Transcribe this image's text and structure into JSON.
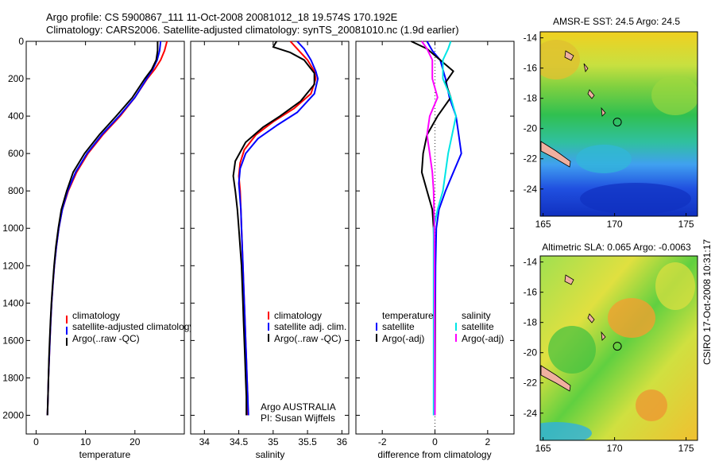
{
  "header": {
    "title_line1": "Argo profile: CS 5900867_111 11-Oct-2008 20081012_18 19.574S 170.192E",
    "title_line2": "Climatology: CARS2006. Satellite-adjusted climatology: synTS_20081010.nc (1.9d earlier)"
  },
  "side_stamp": "CSIRO 17-Oct-2008 10:31:17",
  "credits": {
    "line1": "Argo AUSTRALIA",
    "line2": "PI: Susan Wijffels"
  },
  "colors": {
    "climatology": "#ff0000",
    "satellite": "#0000ff",
    "argo": "#000000",
    "sal_satellite": "#00e5e5",
    "sal_argo": "#ff00ff"
  },
  "chart_data": [
    {
      "type": "line",
      "name": "temperature-profile",
      "xlabel": "temperature",
      "xlim": [
        -2,
        30
      ],
      "ylim": [
        2100,
        0
      ],
      "xticks": [
        0,
        10,
        20
      ],
      "yticks": [
        0,
        200,
        400,
        600,
        800,
        1000,
        1200,
        1400,
        1600,
        1800,
        2000
      ],
      "legend": [
        "climatology",
        "satellite-adjusted climatology",
        "Argo(..raw -QC)"
      ],
      "series": [
        {
          "name": "climatology",
          "color": "#ff0000",
          "points": [
            [
              26.5,
              0
            ],
            [
              26,
              50
            ],
            [
              25.2,
              100
            ],
            [
              24,
              150
            ],
            [
              22.5,
              200
            ],
            [
              20,
              300
            ],
            [
              17,
              400
            ],
            [
              13.5,
              500
            ],
            [
              10.5,
              600
            ],
            [
              8.2,
              700
            ],
            [
              6.5,
              800
            ],
            [
              5.3,
              900
            ],
            [
              4.6,
              1000
            ],
            [
              4.1,
              1100
            ],
            [
              3.7,
              1200
            ],
            [
              3.4,
              1300
            ],
            [
              3.15,
              1400
            ],
            [
              2.95,
              1500
            ],
            [
              2.8,
              1600
            ],
            [
              2.65,
              1700
            ],
            [
              2.5,
              1800
            ],
            [
              2.4,
              1900
            ],
            [
              2.3,
              2000
            ]
          ]
        },
        {
          "name": "satellite-adjusted climatology",
          "color": "#0000ff",
          "points": [
            [
              25.2,
              0
            ],
            [
              25,
              50
            ],
            [
              24.5,
              100
            ],
            [
              23.6,
              150
            ],
            [
              22.4,
              200
            ],
            [
              20,
              300
            ],
            [
              16.8,
              400
            ],
            [
              13.3,
              500
            ],
            [
              10.3,
              600
            ],
            [
              8,
              700
            ],
            [
              6.4,
              800
            ],
            [
              5.3,
              900
            ],
            [
              4.6,
              1000
            ],
            [
              4.1,
              1100
            ],
            [
              3.7,
              1200
            ],
            [
              3.4,
              1300
            ],
            [
              3.15,
              1400
            ],
            [
              2.95,
              1500
            ],
            [
              2.8,
              1600
            ],
            [
              2.65,
              1700
            ],
            [
              2.5,
              1800
            ],
            [
              2.4,
              1900
            ],
            [
              2.3,
              2000
            ]
          ]
        },
        {
          "name": "Argo(..raw -QC)",
          "color": "#000000",
          "points": [
            [
              24.6,
              0
            ],
            [
              24.6,
              50
            ],
            [
              24.3,
              100
            ],
            [
              23.4,
              150
            ],
            [
              22,
              200
            ],
            [
              19.5,
              300
            ],
            [
              16.2,
              400
            ],
            [
              12.8,
              500
            ],
            [
              9.8,
              600
            ],
            [
              7.5,
              700
            ],
            [
              6.2,
              800
            ],
            [
              5.1,
              900
            ],
            [
              4.5,
              1000
            ],
            [
              4,
              1100
            ],
            [
              3.65,
              1200
            ],
            [
              3.35,
              1300
            ],
            [
              3.1,
              1400
            ],
            [
              2.9,
              1500
            ],
            [
              2.75,
              1600
            ],
            [
              2.6,
              1700
            ],
            [
              2.5,
              1800
            ],
            [
              2.4,
              1900
            ],
            [
              2.3,
              2000
            ]
          ]
        }
      ]
    },
    {
      "type": "line",
      "name": "salinity-profile",
      "xlabel": "salinity",
      "xlim": [
        33.8,
        36.1
      ],
      "ylim": [
        2100,
        0
      ],
      "xticks": [
        34,
        34.5,
        35,
        35.5,
        36
      ],
      "legend": [
        "climatology",
        "satellite adj. clim.",
        "Argo(..raw -QC)"
      ],
      "series": [
        {
          "name": "climatology",
          "color": "#ff0000",
          "points": [
            [
              35.25,
              0
            ],
            [
              35.35,
              40
            ],
            [
              35.5,
              100
            ],
            [
              35.6,
              160
            ],
            [
              35.62,
              200
            ],
            [
              35.55,
              280
            ],
            [
              35.3,
              360
            ],
            [
              35.0,
              430
            ],
            [
              34.75,
              500
            ],
            [
              34.58,
              580
            ],
            [
              34.52,
              650
            ],
            [
              34.5,
              720
            ],
            [
              34.52,
              800
            ],
            [
              34.53,
              900
            ],
            [
              34.54,
              1000
            ],
            [
              34.55,
              1100
            ],
            [
              34.56,
              1200
            ],
            [
              34.57,
              1300
            ],
            [
              34.58,
              1400
            ],
            [
              34.59,
              1500
            ],
            [
              34.6,
              1600
            ],
            [
              34.61,
              1700
            ],
            [
              34.62,
              1800
            ],
            [
              34.63,
              1900
            ],
            [
              34.63,
              2000
            ]
          ]
        },
        {
          "name": "satellite adj. clim.",
          "color": "#0000ff",
          "points": [
            [
              35.35,
              0
            ],
            [
              35.45,
              40
            ],
            [
              35.55,
              100
            ],
            [
              35.62,
              160
            ],
            [
              35.65,
              200
            ],
            [
              35.6,
              280
            ],
            [
              35.35,
              380
            ],
            [
              35.05,
              450
            ],
            [
              34.78,
              520
            ],
            [
              34.6,
              600
            ],
            [
              34.52,
              680
            ],
            [
              34.5,
              760
            ],
            [
              34.51,
              800
            ],
            [
              34.53,
              900
            ],
            [
              34.54,
              1000
            ],
            [
              34.55,
              1100
            ],
            [
              34.56,
              1200
            ],
            [
              34.57,
              1300
            ],
            [
              34.58,
              1400
            ],
            [
              34.59,
              1500
            ],
            [
              34.6,
              1600
            ],
            [
              34.61,
              1700
            ],
            [
              34.62,
              1800
            ],
            [
              34.63,
              1900
            ],
            [
              34.64,
              2000
            ]
          ]
        },
        {
          "name": "Argo(..raw -QC)",
          "color": "#000000",
          "points": [
            [
              35.05,
              0
            ],
            [
              35.0,
              30
            ],
            [
              35.25,
              60
            ],
            [
              35.45,
              100
            ],
            [
              35.6,
              170
            ],
            [
              35.6,
              230
            ],
            [
              35.4,
              320
            ],
            [
              35.1,
              400
            ],
            [
              34.85,
              460
            ],
            [
              34.6,
              540
            ],
            [
              34.45,
              640
            ],
            [
              34.42,
              720
            ],
            [
              34.45,
              800
            ],
            [
              34.48,
              900
            ],
            [
              34.5,
              1000
            ],
            [
              34.52,
              1100
            ],
            [
              34.54,
              1200
            ],
            [
              34.55,
              1300
            ],
            [
              34.56,
              1400
            ],
            [
              34.57,
              1500
            ],
            [
              34.58,
              1600
            ],
            [
              34.59,
              1700
            ],
            [
              34.6,
              1800
            ],
            [
              34.61,
              1900
            ],
            [
              34.61,
              2000
            ]
          ]
        }
      ]
    },
    {
      "type": "line",
      "name": "difference-profile",
      "xlabel": "difference from climatology",
      "xlim": [
        -3,
        3
      ],
      "ylim": [
        2100,
        0
      ],
      "xticks": [
        -2,
        0,
        2
      ],
      "legend_temperature_header": "temperature",
      "legend_salinity_header": "salinity",
      "legend_temperature": [
        "satellite",
        "Argo(-adj)"
      ],
      "legend_salinity": [
        "satellite",
        "Argo(-adj)"
      ],
      "series": [
        {
          "name": "temperature satellite",
          "color": "#0000ff",
          "points": [
            [
              -0.3,
              0
            ],
            [
              -0.1,
              50
            ],
            [
              0.2,
              100
            ],
            [
              0.4,
              200
            ],
            [
              0.55,
              300
            ],
            [
              0.8,
              400
            ],
            [
              0.9,
              500
            ],
            [
              1,
              600
            ],
            [
              0.7,
              700
            ],
            [
              0.4,
              800
            ],
            [
              0.15,
              900
            ],
            [
              0.05,
              1000
            ],
            [
              0.02,
              1200
            ],
            [
              0.01,
              1500
            ],
            [
              0,
              2000
            ]
          ]
        },
        {
          "name": "temperature Argo(-adj)",
          "color": "#000000",
          "points": [
            [
              -0.9,
              0
            ],
            [
              -0.3,
              40
            ],
            [
              0.2,
              100
            ],
            [
              0.7,
              160
            ],
            [
              0.4,
              220
            ],
            [
              0.6,
              300
            ],
            [
              0.1,
              400
            ],
            [
              -0.3,
              500
            ],
            [
              -0.45,
              600
            ],
            [
              -0.5,
              700
            ],
            [
              -0.3,
              800
            ],
            [
              -0.1,
              900
            ],
            [
              -0.05,
              1000
            ],
            [
              -0.02,
              1200
            ],
            [
              0,
              1500
            ],
            [
              0,
              2000
            ]
          ]
        },
        {
          "name": "salinity satellite",
          "color": "#00e5e5",
          "points": [
            [
              0.6,
              0
            ],
            [
              0.5,
              40
            ],
            [
              0.3,
              100
            ],
            [
              0.3,
              200
            ],
            [
              0.6,
              300
            ],
            [
              0.8,
              400
            ],
            [
              0.65,
              500
            ],
            [
              0.5,
              600
            ],
            [
              0.4,
              700
            ],
            [
              0.3,
              800
            ],
            [
              0.1,
              900
            ],
            [
              -0.05,
              1000
            ],
            [
              -0.05,
              1200
            ],
            [
              -0.05,
              1600
            ],
            [
              -0.05,
              2000
            ]
          ]
        },
        {
          "name": "salinity Argo(-adj)",
          "color": "#ff00ff",
          "points": [
            [
              -0.5,
              0
            ],
            [
              -0.3,
              40
            ],
            [
              -0.1,
              100
            ],
            [
              -0.1,
              200
            ],
            [
              0.1,
              300
            ],
            [
              -0.2,
              400
            ],
            [
              -0.3,
              500
            ],
            [
              -0.2,
              600
            ],
            [
              -0.1,
              700
            ],
            [
              -0.05,
              800
            ],
            [
              -0.02,
              1000
            ],
            [
              0,
              2000
            ]
          ]
        }
      ]
    },
    {
      "type": "heatmap",
      "name": "amsr-e-sst-map",
      "title": "AMSR-E SST: 24.5 Argo: 24.5",
      "xlim": [
        164.8,
        175.8
      ],
      "ylim": [
        -25.8,
        -13.6
      ],
      "xticks": [
        165,
        170,
        175
      ],
      "yticks": [
        -14,
        -16,
        -18,
        -20,
        -22,
        -24
      ],
      "marker": {
        "lon": 170.192,
        "lat": -19.574
      }
    },
    {
      "type": "heatmap",
      "name": "altimetric-sla-map",
      "title": "Altimetric SLA: 0.065 Argo: -0.0063",
      "xlim": [
        164.8,
        175.8
      ],
      "ylim": [
        -25.8,
        -13.6
      ],
      "xticks": [
        165,
        170,
        175
      ],
      "yticks": [
        -14,
        -16,
        -18,
        -20,
        -22,
        -24
      ],
      "marker": {
        "lon": 170.192,
        "lat": -19.574
      }
    }
  ]
}
